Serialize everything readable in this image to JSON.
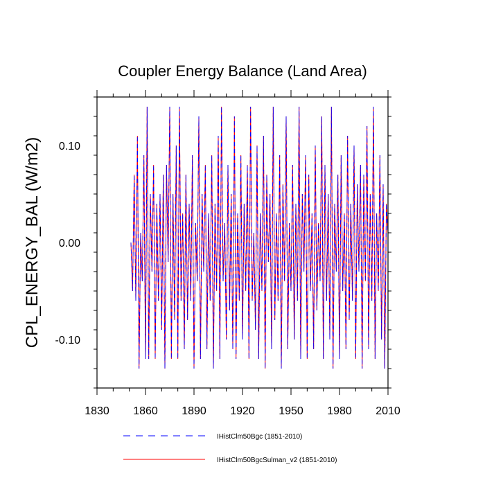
{
  "chart_data": {
    "type": "line",
    "title": "Coupler Energy Balance (Land Area)",
    "ylabel": "CPL_ENERGY_BAL  (W/m2)",
    "xlabel": "",
    "xlim": [
      1830,
      2010
    ],
    "ylim": [
      -0.15,
      0.15
    ],
    "x_ticks": [
      1830,
      1860,
      1890,
      1920,
      1950,
      1980,
      2010
    ],
    "x_tick_labels": [
      "1830",
      "1860",
      "1890",
      "1920",
      "1950",
      "1980",
      "2010"
    ],
    "y_ticks": [
      -0.1,
      0.0,
      0.1
    ],
    "y_tick_labels": [
      "-0.10",
      "0.00",
      "0.10"
    ],
    "grid": false,
    "legend_position": "bottom",
    "x": [
      1851,
      1852,
      1853,
      1854,
      1855,
      1856,
      1857,
      1858,
      1859,
      1860,
      1861,
      1862,
      1863,
      1864,
      1865,
      1866,
      1867,
      1868,
      1869,
      1870,
      1871,
      1872,
      1873,
      1874,
      1875,
      1876,
      1877,
      1878,
      1879,
      1880,
      1881,
      1882,
      1883,
      1884,
      1885,
      1886,
      1887,
      1888,
      1889,
      1890,
      1891,
      1892,
      1893,
      1894,
      1895,
      1896,
      1897,
      1898,
      1899,
      1900,
      1901,
      1902,
      1903,
      1904,
      1905,
      1906,
      1907,
      1908,
      1909,
      1910,
      1911,
      1912,
      1913,
      1914,
      1915,
      1916,
      1917,
      1918,
      1919,
      1920,
      1921,
      1922,
      1923,
      1924,
      1925,
      1926,
      1927,
      1928,
      1929,
      1930,
      1931,
      1932,
      1933,
      1934,
      1935,
      1936,
      1937,
      1938,
      1939,
      1940,
      1941,
      1942,
      1943,
      1944,
      1945,
      1946,
      1947,
      1948,
      1949,
      1950,
      1951,
      1952,
      1953,
      1954,
      1955,
      1956,
      1957,
      1958,
      1959,
      1960,
      1961,
      1962,
      1963,
      1964,
      1965,
      1966,
      1967,
      1968,
      1969,
      1970,
      1971,
      1972,
      1973,
      1974,
      1975,
      1976,
      1977,
      1978,
      1979,
      1980,
      1981,
      1982,
      1983,
      1984,
      1985,
      1986,
      1987,
      1988,
      1989,
      1990,
      1991,
      1992,
      1993,
      1994,
      1995,
      1996,
      1997,
      1998,
      1999,
      2000,
      2001,
      2002,
      2003,
      2004,
      2005,
      2006,
      2007,
      2008,
      2009,
      2010
    ],
    "series": [
      {
        "name": "IHistClm50Bgc (1851-2010)",
        "color": "#0000ff",
        "dash": "dashed",
        "values": [
          0.0,
          -0.05,
          0.07,
          -0.06,
          0.11,
          -0.13,
          0.01,
          -0.04,
          0.09,
          -0.12,
          0.14,
          -0.12,
          0.05,
          -0.03,
          0.08,
          -0.12,
          0.04,
          -0.06,
          0.05,
          -0.09,
          0.07,
          -0.13,
          0.08,
          -0.02,
          0.14,
          -0.12,
          0.05,
          -0.08,
          0.1,
          -0.12,
          0.14,
          -0.06,
          0.03,
          -0.11,
          0.07,
          -0.08,
          0.04,
          -0.06,
          0.09,
          -0.13,
          0.02,
          -0.04,
          0.13,
          -0.12,
          0.05,
          -0.03,
          0.08,
          -0.11,
          0.03,
          -0.06,
          0.09,
          -0.13,
          0.04,
          -0.05,
          0.11,
          -0.12,
          0.14,
          -0.04,
          0.02,
          -0.1,
          0.08,
          -0.07,
          0.05,
          -0.11,
          0.13,
          -0.12,
          0.03,
          -0.06,
          0.09,
          -0.1,
          0.04,
          -0.05,
          0.08,
          -0.12,
          0.14,
          -0.06,
          0.01,
          -0.09,
          0.1,
          -0.12,
          0.03,
          -0.05,
          0.11,
          -0.13,
          0.07,
          -0.02,
          0.05,
          -0.11,
          0.14,
          -0.08,
          0.03,
          -0.06,
          0.09,
          -0.13,
          0.06,
          -0.04,
          0.13,
          -0.11,
          0.02,
          -0.05,
          0.08,
          -0.1,
          0.04,
          -0.06,
          0.14,
          -0.12,
          0.05,
          -0.03,
          0.09,
          -0.12,
          0.07,
          -0.05,
          0.03,
          -0.11,
          0.1,
          -0.07,
          0.02,
          -0.04,
          0.13,
          -0.12,
          0.08,
          -0.06,
          0.05,
          -0.1,
          0.14,
          -0.13,
          0.04,
          -0.03,
          0.07,
          -0.12,
          0.09,
          -0.05,
          0.03,
          -0.11,
          0.11,
          -0.08,
          0.04,
          -0.06,
          0.1,
          -0.12,
          0.06,
          -0.03,
          0.08,
          -0.13,
          0.07,
          -0.04,
          0.12,
          -0.11,
          0.05,
          -0.06,
          0.14,
          -0.12,
          0.03,
          -0.05,
          0.09,
          -0.1,
          0.06,
          -0.13,
          0.04,
          0.01
        ]
      },
      {
        "name": "IHistClm50BgcSulman_v2 (1851-2010)",
        "color": "#ff0000",
        "dash": "solid",
        "values": [
          0.0,
          -0.05,
          0.07,
          -0.06,
          0.11,
          -0.13,
          0.01,
          -0.04,
          0.09,
          -0.12,
          0.14,
          -0.12,
          0.05,
          -0.03,
          0.08,
          -0.12,
          0.04,
          -0.06,
          0.05,
          -0.09,
          0.07,
          -0.13,
          0.08,
          -0.02,
          0.14,
          -0.12,
          0.05,
          -0.08,
          0.1,
          -0.12,
          0.14,
          -0.06,
          0.03,
          -0.11,
          0.07,
          -0.08,
          0.04,
          -0.06,
          0.09,
          -0.13,
          0.02,
          -0.04,
          0.13,
          -0.12,
          0.05,
          -0.03,
          0.08,
          -0.11,
          0.03,
          -0.06,
          0.09,
          -0.13,
          0.04,
          -0.05,
          0.11,
          -0.12,
          0.14,
          -0.04,
          0.02,
          -0.1,
          0.08,
          -0.07,
          0.05,
          -0.11,
          0.13,
          -0.12,
          0.03,
          -0.06,
          0.09,
          -0.1,
          0.04,
          -0.05,
          0.08,
          -0.12,
          0.14,
          -0.06,
          0.01,
          -0.09,
          0.1,
          -0.12,
          0.03,
          -0.05,
          0.11,
          -0.13,
          0.07,
          -0.02,
          0.05,
          -0.11,
          0.14,
          -0.08,
          0.03,
          -0.06,
          0.09,
          -0.13,
          0.06,
          -0.04,
          0.13,
          -0.11,
          0.02,
          -0.05,
          0.08,
          -0.1,
          0.04,
          -0.06,
          0.14,
          -0.12,
          0.05,
          -0.03,
          0.09,
          -0.12,
          0.07,
          -0.05,
          0.03,
          -0.11,
          0.1,
          -0.07,
          0.02,
          -0.04,
          0.13,
          -0.12,
          0.08,
          -0.06,
          0.05,
          -0.1,
          0.14,
          -0.13,
          0.04,
          -0.03,
          0.07,
          -0.12,
          0.09,
          -0.05,
          0.03,
          -0.11,
          0.11,
          -0.08,
          0.04,
          -0.06,
          0.1,
          -0.12,
          0.06,
          -0.03,
          0.08,
          -0.13,
          0.07,
          -0.04,
          0.12,
          -0.11,
          0.05,
          -0.06,
          0.14,
          -0.12,
          0.03,
          -0.05,
          0.09,
          -0.1,
          0.06,
          -0.13,
          0.04,
          0.01
        ]
      }
    ]
  }
}
